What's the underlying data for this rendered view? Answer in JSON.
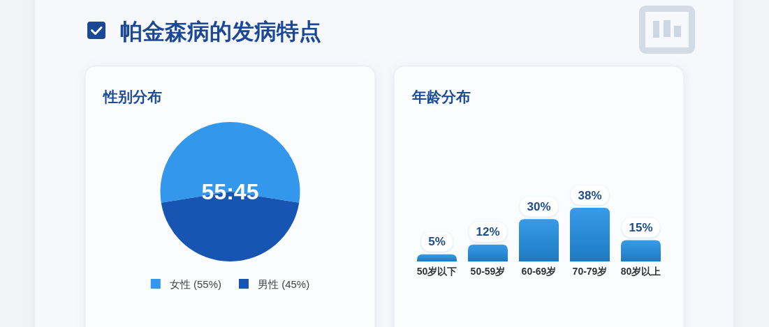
{
  "chart_data": [
    {
      "type": "other",
      "title": "帕金森病的发病特点"
    },
    {
      "type": "pie",
      "title": "性别分布",
      "categories": [
        "女性 (55%)",
        "男性 (45%)"
      ],
      "values": [
        55,
        45
      ],
      "colors": [
        "#3398ec",
        "#1655b2"
      ],
      "annotations": [
        "55:45"
      ],
      "legend": "bottom"
    },
    {
      "type": "bar",
      "title": "年龄分布",
      "categories": [
        "50岁以下",
        "50-59岁",
        "60-69岁",
        "70-79岁",
        "80岁以上"
      ],
      "values": [
        5,
        12,
        30,
        38,
        15
      ],
      "color": "#2290e4",
      "value_labels": [
        "5%",
        "12%",
        "30%",
        "38%",
        "15%"
      ],
      "tick_labels": "x"
    }
  ]
}
